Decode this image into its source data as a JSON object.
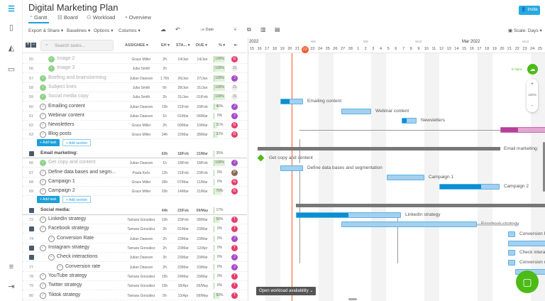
{
  "header": {
    "title": "Digital Marketing Plan",
    "invite": "Invite",
    "tabs": [
      {
        "label": "Gantt",
        "icon": "gantt-icon"
      },
      {
        "label": "Board",
        "icon": "board-icon"
      },
      {
        "label": "Workload",
        "icon": "users-icon"
      },
      {
        "label": "Overview",
        "icon": "overview-icon"
      }
    ]
  },
  "toolbar": {
    "export": "Export & Share ▾",
    "baselines": "Baselines ▾",
    "options": "Options ▾",
    "columns": "Columns ▾",
    "date": "Date",
    "scale": "Scale: Days ▾"
  },
  "table": {
    "search_placeholder": "Search tasks...",
    "columns": [
      "ASSIGNEE ▾",
      "EH ▾",
      "STA... ▾",
      "DUE ▾",
      "% ▾"
    ],
    "add_task": "+ Add task",
    "add_section": "+ Add section",
    "rows": [
      {
        "n": "55",
        "name": "Image 2",
        "as": "Grace Miller",
        "eh": "2h",
        "st": "14/Jan",
        "du": "14/Jan",
        "pc": "100%",
        "av": "G",
        "done": true,
        "lvl": 2
      },
      {
        "n": "56",
        "name": "Image 3",
        "as": "Julia Smith",
        "eh": "2h",
        "st": "",
        "du": "",
        "pc": "100%",
        "av": "JS",
        "done": true,
        "lvl": 2
      },
      {
        "n": "57",
        "name": "Briefing and brainstorming",
        "as": "Julian Dawson",
        "eh": "1.75h",
        "st": "26/Jan",
        "du": "27/Jan",
        "pc": "100%",
        "av": "J",
        "done": true,
        "lvl": 1
      },
      {
        "n": "58",
        "name": "Subject lines",
        "as": "Julia Smith",
        "eh": "6h",
        "st": "28/Jan",
        "du": "31/Jan",
        "pc": "100%",
        "av": "JS",
        "done": true,
        "lvl": 1
      },
      {
        "n": "59",
        "name": "Social media copy",
        "as": "Julia Smith",
        "eh": "2h",
        "st": "31/Jan",
        "du": "01/Feb",
        "pc": "100%",
        "av": "JS",
        "done": true,
        "lvl": 1
      },
      {
        "n": "60",
        "name": "Emailing content",
        "as": "Julian Dawson",
        "eh": "10h",
        "st": "21/Feb",
        "du": "23/Feb",
        "pc": "40%",
        "av": "J",
        "lvl": 1
      },
      {
        "n": "61",
        "name": "Webinar content",
        "as": "Julian Dawson",
        "eh": "1h",
        "st": "01/Mar",
        "du": "04/Mar",
        "pc": "0%",
        "av": "J",
        "lvl": 1
      },
      {
        "n": "62",
        "name": "Newsletters",
        "as": "Grace Miller",
        "eh": "2h",
        "st": "09/Mar",
        "du": "10/Mar",
        "pc": "31%",
        "av": "G",
        "lvl": 1
      },
      {
        "n": "63",
        "name": "Blog posts",
        "as": "Grace Miller",
        "eh": "34h",
        "st": "22/Mar",
        "du": "28/Mar",
        "pc": "32%",
        "av": "G",
        "lvl": 1
      },
      {
        "type": "add"
      },
      {
        "type": "section",
        "name": "Email marketing:",
        "eh": "63h",
        "st": "18/Feb",
        "du": "21/Mar",
        "pc": "35%"
      },
      {
        "n": "66",
        "name": "Get copy and content",
        "as": "Julian Dawson",
        "eh": "1h",
        "st": "18/Feb",
        "du": "18/Feb",
        "pc": "100%",
        "av": "J",
        "done": true,
        "lvl": 1
      },
      {
        "n": "67",
        "name": "Define data bases and segm...",
        "as": "Paula Kehr",
        "eh": "12h",
        "st": "21/Feb",
        "du": "23/Feb",
        "pc": "0%",
        "av": "P",
        "lvl": 1
      },
      {
        "n": "68",
        "name": "Campaign 1",
        "as": "Grace Miller",
        "eh": "30h",
        "st": "07/Mar",
        "du": "11/Mar",
        "pc": "0%",
        "av": "G",
        "lvl": 1
      },
      {
        "n": "69",
        "name": "Campaign 2",
        "as": "Grace Miller",
        "eh": "20h",
        "st": "14/Mar",
        "du": "21/Mar",
        "pc": "70%",
        "av": "G",
        "lvl": 1
      },
      {
        "type": "add"
      },
      {
        "type": "section",
        "name": "Social media:",
        "eh": "44h",
        "st": "23/Feb",
        "du": "09/May",
        "pc": "17%"
      },
      {
        "n": "72",
        "name": "LinkedIn strategy",
        "as": "Tamara González",
        "eh": "10h",
        "st": "23/Feb",
        "du": "08/Mar",
        "pc": "50%",
        "av": "T",
        "lvl": 1
      },
      {
        "n": "",
        "name": "Facebook strategy",
        "as": "Tamara González",
        "eh": "2h",
        "st": "01/Mar",
        "du": "23/Mar",
        "pc": "0%",
        "av": "T",
        "lvl": 1,
        "collapse": true
      },
      {
        "n": "74",
        "name": "Conversion Rate",
        "as": "Julian Dawson",
        "eh": "2h",
        "st": "23/Mar",
        "du": "23/Mar",
        "pc": "0%",
        "av": "J",
        "lvl": 2
      },
      {
        "n": "",
        "name": "Instagram strategy",
        "as": "Tamara González",
        "eh": "2h",
        "st": "23/Mar",
        "du": "12/Apr",
        "pc": "0%",
        "av": "T",
        "lvl": 1,
        "collapse": true
      },
      {
        "n": "",
        "name": "Check interactions",
        "as": "Julian Dawson",
        "eh": "2h",
        "st": "23/Mar",
        "du": "23/Mar",
        "pc": "0%",
        "av": "J",
        "lvl": 2,
        "collapse": true
      },
      {
        "n": "77",
        "name": "Conversion rate",
        "as": "Julian Dawson",
        "eh": "2h",
        "st": "23/Mar",
        "du": "23/Mar",
        "pc": "0%",
        "av": "J",
        "lvl": 3
      },
      {
        "n": "78",
        "name": "YouTube strategy",
        "as": "Tamara González",
        "eh": "15h",
        "st": "24/Mar",
        "du": "29/Mar",
        "pc": "0%",
        "av": "T",
        "lvl": 1
      },
      {
        "n": "79",
        "name": "Twitter strategy",
        "as": "Tamara González",
        "eh": "10h",
        "st": "18/Apr",
        "du": "06/May",
        "pc": "0%",
        "av": "T",
        "lvl": 1
      },
      {
        "n": "80",
        "name": "Tiktok strategy",
        "as": "Tamara González",
        "eh": "5h",
        "st": "13/Apr",
        "du": "09/May",
        "pc": "50%",
        "av": "T",
        "lvl": 1
      }
    ]
  },
  "timeline": {
    "months": [
      "2022",
      "Mar 2022"
    ],
    "weeks": [
      "W8",
      "W9",
      "W10",
      "W12"
    ],
    "today": "22",
    "days": [
      "15",
      "16",
      "17",
      "18",
      "19",
      "20",
      "21",
      "22",
      "23",
      "24",
      "25",
      "26",
      "27",
      "28",
      "1",
      "2",
      "3",
      "4",
      "5",
      "6",
      "7",
      "8",
      "9",
      "10",
      "11",
      "12",
      "13",
      "14",
      "15",
      "16",
      "17",
      "18",
      "19",
      "20",
      "21",
      "22",
      "23",
      "24",
      "25"
    ],
    "bar_labels": {
      "emailing": "Emailing content",
      "webinar": "Webinar content",
      "newsletters": "Newsletters",
      "email_marketing": "Email marketing:",
      "getcopy": "Get copy and content",
      "define": "Define data bases and segmentation",
      "campaign1": "Campaign 1",
      "campaign2": "Campaign 2",
      "linkedin": "LinkedIn strategy",
      "facebook": "Facebook strategy",
      "conv1": "Conversion Rate",
      "check": "Check interactions",
      "conv2": "Conversion rate"
    },
    "sync": "In Sync",
    "zoom": "100%",
    "zoom_in": "+",
    "zoom_out": "-",
    "workload": "Open workload availability ⌄"
  },
  "colors": {
    "accent": "#27a9e1",
    "progress": "#0a8fd1",
    "bar": "#a4d0ee",
    "today": "#f05a28",
    "sync": "#4cbb17",
    "G": "#e83e6c",
    "J": "#a64ac9",
    "T": "#e83e6c",
    "P": "#8a6a5a",
    "JS": "#eeeeee"
  }
}
